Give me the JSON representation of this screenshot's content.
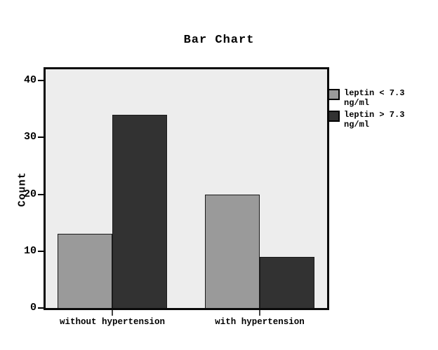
{
  "title": "Bar Chart",
  "chart_data": {
    "type": "bar",
    "title": "Bar Chart",
    "categories": [
      "without hypertension",
      "with hypertension"
    ],
    "series": [
      {
        "name": "leptin < 7.3 ng/ml",
        "legend_lines": [
          "leptin < 7.3",
          "ng/ml"
        ],
        "color": "#9a9a9a",
        "values": [
          13,
          20
        ]
      },
      {
        "name": "leptin > 7.3 ng/ml",
        "legend_lines": [
          "leptin > 7.3",
          "ng/ml"
        ],
        "color": "#323232",
        "values": [
          34,
          9
        ]
      }
    ],
    "xlabel": "",
    "ylabel": "Count",
    "yticks": [
      0,
      10,
      20,
      30,
      40
    ],
    "ylim": [
      0,
      42
    ],
    "grid": false,
    "legend_position": "right",
    "plot_background": "#ededed",
    "bar_border_color": "#1a1a1a",
    "frame_color": "#0a0a0a"
  }
}
